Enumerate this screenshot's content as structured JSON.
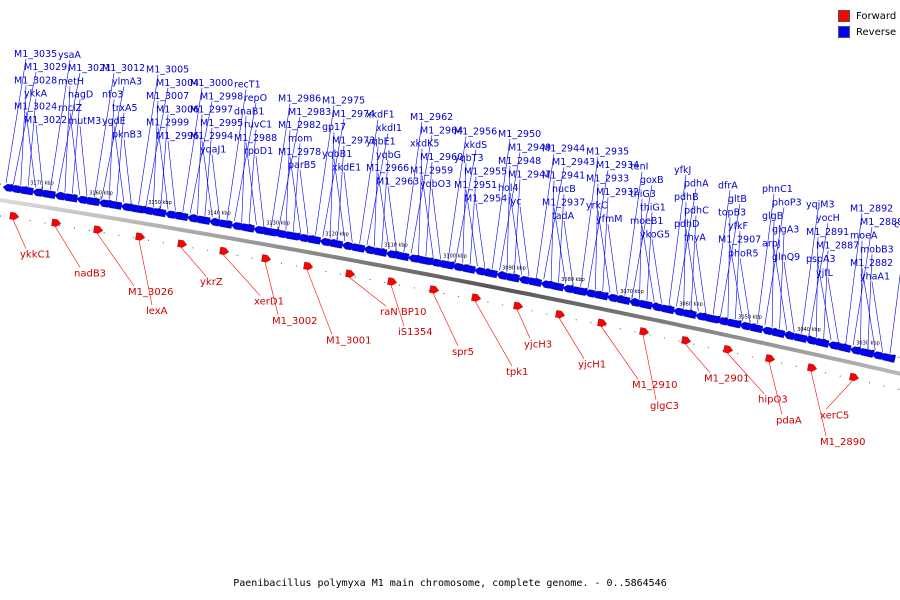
{
  "caption": "Paenibacillus polymyxa M1 main chromosome, complete genome. - 0..5864546",
  "legend": [
    {
      "label": "Forward",
      "color": "#ff0000"
    },
    {
      "label": "Reverse",
      "color": "#0000ff"
    }
  ],
  "colors": {
    "forward": "#ff0000",
    "reverse": "#0000ff",
    "forward_label": "#cc0000",
    "reverse_label": "#0000cc",
    "backbone": "#888888"
  },
  "scale_ticks": [
    "3170 kbp",
    "3160 kbp",
    "3150 kbp",
    "3140 kbp",
    "3130 kbp",
    "3120 kbp",
    "3110 kbp",
    "3100 kbp",
    "3090 kbp",
    "3080 kbp",
    "3070 kbp",
    "3060 kbp",
    "3050 kbp",
    "3040 kbp",
    "3030 kbp"
  ],
  "reverse_genes": [
    "M1_3035",
    "M1_3029",
    "M1_3028",
    "ykkA",
    "M1_3024",
    "M1_3022",
    "ysaA",
    "M1_3021",
    "metH",
    "nagD",
    "rnclZ",
    "mutM3",
    "M1_3012",
    "ylmA3",
    "nfo3",
    "trxA5",
    "ygdE",
    "pknB3",
    "M1_3005",
    "M1_3004",
    "M1_3007",
    "M1_3006",
    "M1_2999",
    "M1_2996",
    "M1_3000",
    "M1_2998",
    "M1_2997",
    "M1_2995",
    "M1_2994",
    "yqaJ1",
    "recT1",
    "repO",
    "dnaB1",
    "ruvC1",
    "M1_2988",
    "rpoD1",
    "M1_2986",
    "M1_2983",
    "M1_2982",
    "mom",
    "M1_2978",
    "parB5",
    "M1_2975",
    "M1_2974",
    "gp17",
    "M1_2973",
    "yqbB1",
    "xkdE1",
    "xkdF1",
    "xkdI1",
    "yqbE1",
    "yqbG",
    "M1_2966",
    "M1_2963",
    "M1_2962",
    "M1_2964",
    "xkdK5",
    "M1_2960",
    "M1_2959",
    "yqbO3",
    "M1_2956",
    "xkdS",
    "yqbT3",
    "M1_2955",
    "M1_2951",
    "M1_2954",
    "M1_2950",
    "M1_2949",
    "M1_2948",
    "M1_2947",
    "hol4",
    "lyc",
    "M1_2944",
    "M1_2943",
    "M1_2941",
    "nucB",
    "M1_2937",
    "tadA",
    "M1_2935",
    "M1_2934",
    "M1_2933",
    "M1_2932",
    "yrkC",
    "yfmM",
    "tenI",
    "goxB",
    "thiG3",
    "thiG1",
    "moeB1",
    "ykoG5",
    "yfkJ",
    "pdhA",
    "pdhB",
    "pdhC",
    "pdhD",
    "thyA",
    "dfrA",
    "gltB",
    "topB3",
    "yfkF",
    "M1_2907",
    "phoR5",
    "phnC1",
    "phoP3",
    "glgB",
    "glgA3",
    "arpJ",
    "glnQ9",
    "yqjM3",
    "yocH",
    "M1_2891",
    "M1_2887",
    "pspA3",
    "yjfL",
    "M1_2892",
    "M1_2888",
    "moeA",
    "mobB3",
    "M1_2882",
    "yhaA1",
    "celZ"
  ],
  "forward_genes": [
    "ykkC1",
    "nadB3",
    "M1_3026",
    "lexA",
    "ykrZ",
    "xerD1",
    "M1_3002",
    "M1_3001",
    "raN BP10",
    "iS1354",
    "spr5",
    "tpk1",
    "yjcH3",
    "yjcH1",
    "M1_2910",
    "glgC3",
    "M1_2901",
    "hipO3",
    "pdaA",
    "M1_2890",
    "xerC5"
  ]
}
